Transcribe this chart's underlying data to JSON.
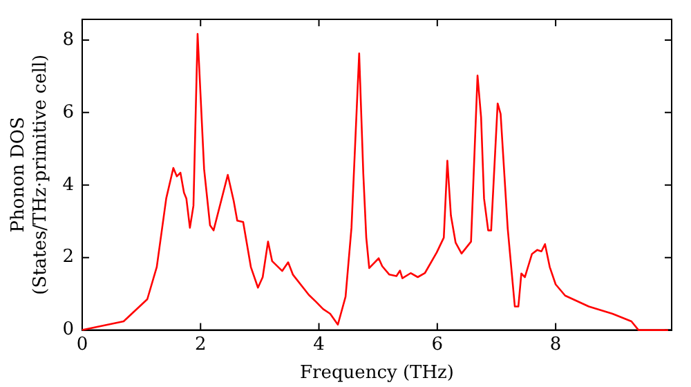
{
  "chart_data": {
    "type": "line",
    "xlabel": "Frequency (THz)",
    "ylabel": "Phonon DOS\n(States/THz·primitive cell)",
    "xlim": [
      0,
      9.96
    ],
    "ylim": [
      0,
      8.57
    ],
    "xticks": [
      0,
      2,
      4,
      6,
      8
    ],
    "yticks": [
      0,
      2,
      4,
      6,
      8
    ],
    "grid": false,
    "legend": false,
    "marker": "none",
    "line_style": "solid",
    "x": [
      0,
      0.7,
      1.1,
      1.26,
      1.42,
      1.54,
      1.6,
      1.66,
      1.72,
      1.76,
      1.82,
      1.88,
      1.95,
      2.06,
      2.16,
      2.22,
      2.46,
      2.56,
      2.62,
      2.72,
      2.85,
      2.97,
      3.05,
      3.14,
      3.21,
      3.38,
      3.48,
      3.56,
      3.83,
      3.95,
      4.07,
      4.19,
      4.32,
      4.45,
      4.55,
      4.68,
      4.75,
      4.8,
      4.85,
      5.01,
      5.07,
      5.19,
      5.31,
      5.37,
      5.41,
      5.55,
      5.67,
      5.79,
      5.99,
      6.11,
      6.17,
      6.23,
      6.31,
      6.41,
      6.57,
      6.68,
      6.74,
      6.79,
      6.86,
      6.91,
      7.02,
      7.07,
      7.19,
      7.31,
      7.37,
      7.42,
      7.48,
      7.6,
      7.69,
      7.76,
      7.82,
      7.9,
      8,
      8.16,
      8.56,
      8.96,
      9.28,
      9.4,
      9.9
    ],
    "series": [
      {
        "color": "#ff0000",
        "values": [
          0,
          0.24,
          0.85,
          1.74,
          3.63,
          4.47,
          4.24,
          4.34,
          3.79,
          3.63,
          2.82,
          3.43,
          8.17,
          4.44,
          2.89,
          2.75,
          4.28,
          3.56,
          3.02,
          2.98,
          1.74,
          1.17,
          1.46,
          2.44,
          1.9,
          1.63,
          1.87,
          1.53,
          0.97,
          0.78,
          0.58,
          0.45,
          0.15,
          0.92,
          2.82,
          7.63,
          4.31,
          2.55,
          1.71,
          1.98,
          1.76,
          1.53,
          1.49,
          1.64,
          1.43,
          1.57,
          1.46,
          1.57,
          2.14,
          2.55,
          4.67,
          3.16,
          2.41,
          2.11,
          2.44,
          7.02,
          5.87,
          3.63,
          2.75,
          2.75,
          6.25,
          5.96,
          2.8,
          0.65,
          0.65,
          1.56,
          1.46,
          2.1,
          2.21,
          2.17,
          2.37,
          1.74,
          1.26,
          0.95,
          0.65,
          0.45,
          0.24,
          0,
          0
        ]
      }
    ]
  }
}
